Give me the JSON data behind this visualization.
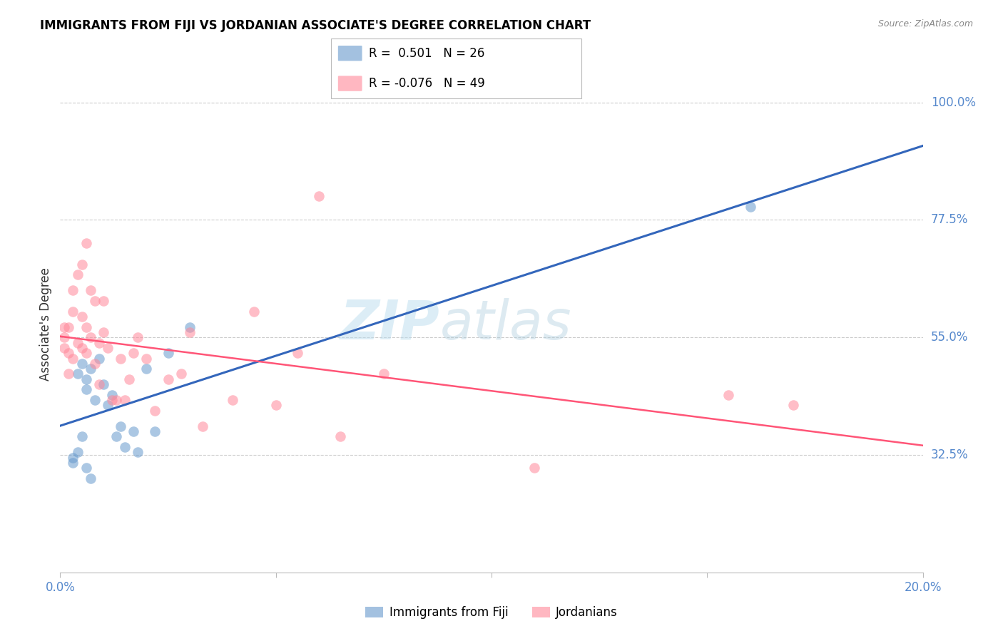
{
  "title": "IMMIGRANTS FROM FIJI VS JORDANIAN ASSOCIATE'S DEGREE CORRELATION CHART",
  "source": "Source: ZipAtlas.com",
  "ylabel": "Associate's Degree",
  "fiji_R": "0.501",
  "fiji_N": "26",
  "jordan_R": "-0.076",
  "jordan_N": "49",
  "fiji_color": "#6699CC",
  "jordan_color": "#FF8899",
  "line_fiji_color": "#3366BB",
  "line_jordan_color": "#FF5577",
  "watermark_zip": "ZIP",
  "watermark_atlas": "atlas",
  "xlim": [
    0.0,
    0.2
  ],
  "ylim": [
    0.1,
    1.05
  ],
  "ytick_vals": [
    0.325,
    0.55,
    0.775,
    1.0
  ],
  "ytick_labels": [
    "32.5%",
    "55.0%",
    "77.5%",
    "100.0%"
  ],
  "fiji_x": [
    0.004,
    0.005,
    0.006,
    0.006,
    0.007,
    0.008,
    0.009,
    0.01,
    0.011,
    0.012,
    0.013,
    0.014,
    0.015,
    0.017,
    0.018,
    0.02,
    0.022,
    0.025,
    0.003,
    0.003,
    0.004,
    0.005,
    0.006,
    0.007,
    0.03,
    0.16
  ],
  "fiji_y": [
    0.48,
    0.5,
    0.45,
    0.47,
    0.49,
    0.43,
    0.51,
    0.46,
    0.42,
    0.44,
    0.36,
    0.38,
    0.34,
    0.37,
    0.33,
    0.49,
    0.37,
    0.52,
    0.32,
    0.31,
    0.33,
    0.36,
    0.3,
    0.28,
    0.57,
    0.8
  ],
  "jordan_x": [
    0.001,
    0.001,
    0.001,
    0.002,
    0.002,
    0.002,
    0.003,
    0.003,
    0.003,
    0.004,
    0.004,
    0.005,
    0.005,
    0.005,
    0.006,
    0.006,
    0.006,
    0.007,
    0.007,
    0.008,
    0.008,
    0.009,
    0.009,
    0.01,
    0.01,
    0.011,
    0.012,
    0.013,
    0.014,
    0.015,
    0.016,
    0.017,
    0.018,
    0.02,
    0.022,
    0.025,
    0.028,
    0.03,
    0.033,
    0.04,
    0.045,
    0.05,
    0.055,
    0.06,
    0.065,
    0.075,
    0.11,
    0.155,
    0.17
  ],
  "jordan_y": [
    0.53,
    0.55,
    0.57,
    0.52,
    0.57,
    0.48,
    0.51,
    0.6,
    0.64,
    0.54,
    0.67,
    0.69,
    0.59,
    0.53,
    0.52,
    0.57,
    0.73,
    0.64,
    0.55,
    0.5,
    0.62,
    0.54,
    0.46,
    0.56,
    0.62,
    0.53,
    0.43,
    0.43,
    0.51,
    0.43,
    0.47,
    0.52,
    0.55,
    0.51,
    0.41,
    0.47,
    0.48,
    0.56,
    0.38,
    0.43,
    0.6,
    0.42,
    0.52,
    0.82,
    0.36,
    0.48,
    0.3,
    0.44,
    0.42
  ]
}
